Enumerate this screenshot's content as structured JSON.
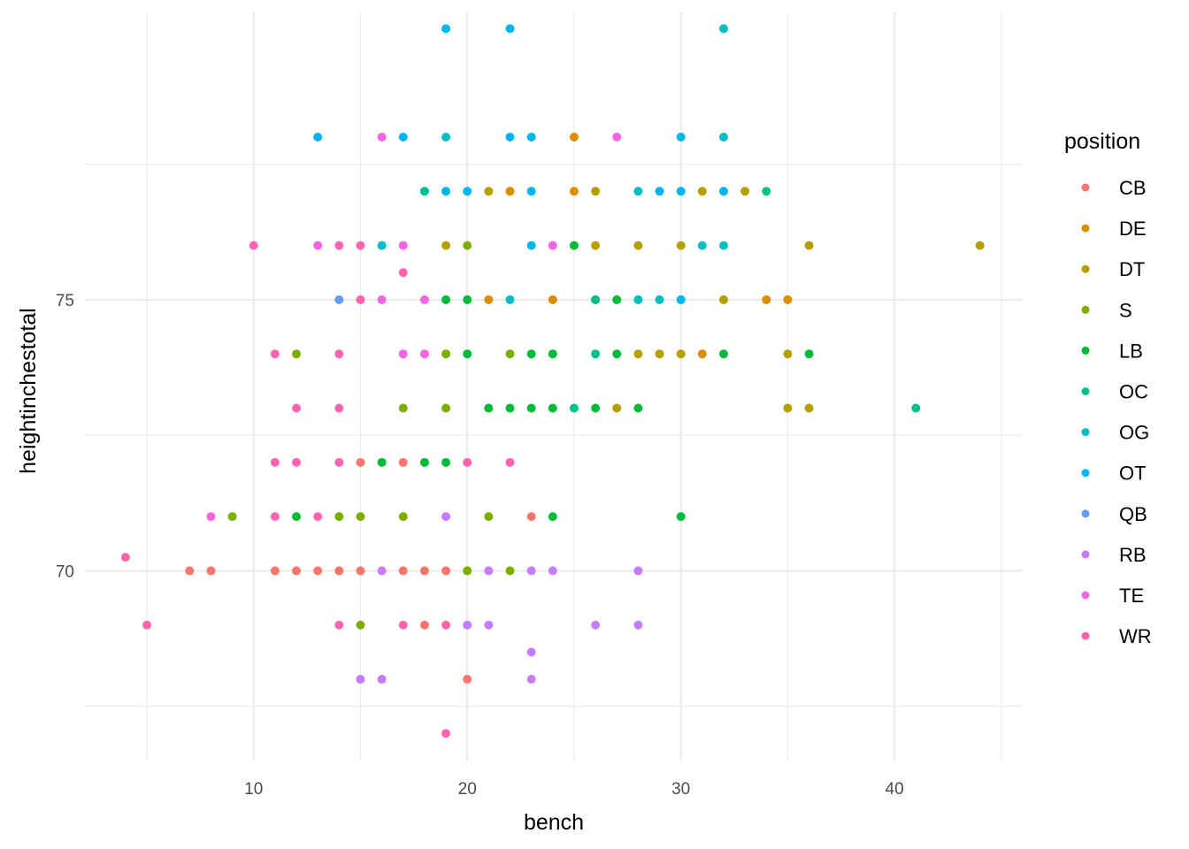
{
  "chart_data": {
    "type": "scatter",
    "title": "",
    "xlabel": "bench",
    "ylabel": "heightinchestotal",
    "xlim": [
      2.1,
      46.0
    ],
    "ylim": [
      66.5,
      80.3
    ],
    "x_ticks": [
      10,
      20,
      30,
      40
    ],
    "y_ticks": [
      70,
      75
    ],
    "grid": true,
    "legend": {
      "title": "position",
      "placement": "right",
      "entries": [
        {
          "label": "CB",
          "color": "#F8766D"
        },
        {
          "label": "DE",
          "color": "#DE8C00"
        },
        {
          "label": "DT",
          "color": "#B79F00"
        },
        {
          "label": "S",
          "color": "#7CAE00"
        },
        {
          "label": "LB",
          "color": "#00BA38"
        },
        {
          "label": "OC",
          "color": "#00C08B"
        },
        {
          "label": "OG",
          "color": "#00BFC4"
        },
        {
          "label": "OT",
          "color": "#00B4F0"
        },
        {
          "label": "QB",
          "color": "#619CFF"
        },
        {
          "label": "RB",
          "color": "#C77CFF"
        },
        {
          "label": "TE",
          "color": "#F564E3"
        },
        {
          "label": "WR",
          "color": "#FF64B0"
        }
      ]
    },
    "series": [
      {
        "name": "CB",
        "color": "#F8766D",
        "points": [
          [
            7,
            70
          ],
          [
            8,
            70
          ],
          [
            11,
            70
          ],
          [
            12,
            70
          ],
          [
            13,
            70
          ],
          [
            14,
            70
          ],
          [
            15,
            70
          ],
          [
            17,
            70
          ],
          [
            18,
            70
          ],
          [
            19,
            70
          ],
          [
            23,
            71
          ],
          [
            15,
            72
          ],
          [
            17,
            72
          ],
          [
            18,
            69
          ],
          [
            20,
            68
          ]
        ]
      },
      {
        "name": "DE",
        "color": "#DE8C00",
        "points": [
          [
            25,
            78
          ],
          [
            22,
            77
          ],
          [
            25,
            77
          ],
          [
            21,
            75
          ],
          [
            24,
            75
          ],
          [
            26,
            75
          ],
          [
            34,
            75
          ],
          [
            35,
            75
          ],
          [
            31,
            74
          ]
        ]
      },
      {
        "name": "DT",
        "color": "#B79F00",
        "points": [
          [
            21,
            77
          ],
          [
            26,
            77
          ],
          [
            31,
            77
          ],
          [
            33,
            77
          ],
          [
            19,
            76
          ],
          [
            26,
            76
          ],
          [
            28,
            76
          ],
          [
            30,
            76
          ],
          [
            36,
            76
          ],
          [
            44,
            76
          ],
          [
            32,
            75
          ],
          [
            28,
            74
          ],
          [
            29,
            74
          ],
          [
            30,
            74
          ],
          [
            35,
            74
          ],
          [
            27,
            73
          ],
          [
            35,
            73
          ],
          [
            36,
            73
          ]
        ]
      },
      {
        "name": "S",
        "color": "#7CAE00",
        "points": [
          [
            20,
            76
          ],
          [
            12,
            74
          ],
          [
            19,
            74
          ],
          [
            22,
            74
          ],
          [
            17,
            73
          ],
          [
            19,
            73
          ],
          [
            9,
            71
          ],
          [
            14,
            71
          ],
          [
            15,
            71
          ],
          [
            17,
            71
          ],
          [
            21,
            71
          ],
          [
            20,
            70
          ],
          [
            22,
            70
          ],
          [
            15,
            69
          ]
        ]
      },
      {
        "name": "LB",
        "color": "#00BA38",
        "points": [
          [
            25,
            76
          ],
          [
            19,
            75
          ],
          [
            20,
            75
          ],
          [
            27,
            75
          ],
          [
            20,
            74
          ],
          [
            23,
            74
          ],
          [
            24,
            74
          ],
          [
            27,
            74
          ],
          [
            32,
            74
          ],
          [
            36,
            74
          ],
          [
            21,
            73
          ],
          [
            22,
            73
          ],
          [
            23,
            73
          ],
          [
            24,
            73
          ],
          [
            26,
            73
          ],
          [
            28,
            73
          ],
          [
            16,
            72
          ],
          [
            18,
            72
          ],
          [
            19,
            72
          ],
          [
            12,
            71
          ],
          [
            24,
            71
          ],
          [
            30,
            71
          ]
        ]
      },
      {
        "name": "OC",
        "color": "#00C08B",
        "points": [
          [
            18,
            77
          ],
          [
            34,
            77
          ],
          [
            26,
            75
          ],
          [
            26,
            74
          ],
          [
            25,
            73
          ],
          [
            41,
            73
          ]
        ]
      },
      {
        "name": "OG",
        "color": "#00BFC4",
        "points": [
          [
            32,
            80
          ],
          [
            19,
            78
          ],
          [
            32,
            78
          ],
          [
            28,
            77
          ],
          [
            16,
            76
          ],
          [
            31,
            76
          ],
          [
            32,
            76
          ],
          [
            22,
            75
          ],
          [
            28,
            75
          ],
          [
            29,
            75
          ]
        ]
      },
      {
        "name": "OT",
        "color": "#00B4F0",
        "points": [
          [
            19,
            80
          ],
          [
            22,
            80
          ],
          [
            13,
            78
          ],
          [
            17,
            78
          ],
          [
            22,
            78
          ],
          [
            23,
            78
          ],
          [
            30,
            78
          ],
          [
            19,
            77
          ],
          [
            20,
            77
          ],
          [
            23,
            77
          ],
          [
            29,
            77
          ],
          [
            30,
            77
          ],
          [
            32,
            77
          ],
          [
            23,
            76
          ],
          [
            30,
            75
          ]
        ]
      },
      {
        "name": "QB",
        "color": "#619CFF",
        "points": [
          [
            14,
            75
          ]
        ]
      },
      {
        "name": "RB",
        "color": "#C77CFF",
        "points": [
          [
            16,
            70
          ],
          [
            21,
            70
          ],
          [
            23,
            70
          ],
          [
            24,
            70
          ],
          [
            28,
            70
          ],
          [
            19,
            71
          ],
          [
            20,
            69
          ],
          [
            21,
            69
          ],
          [
            26,
            69
          ],
          [
            28,
            69
          ],
          [
            23,
            68.5
          ],
          [
            15,
            68
          ],
          [
            16,
            68
          ],
          [
            23,
            68
          ]
        ]
      },
      {
        "name": "TE",
        "color": "#F564E3",
        "points": [
          [
            16,
            78
          ],
          [
            27,
            78
          ],
          [
            13,
            76
          ],
          [
            17,
            76
          ],
          [
            24,
            76
          ],
          [
            16,
            75
          ],
          [
            18,
            75
          ],
          [
            17,
            74
          ],
          [
            18,
            74
          ],
          [
            8,
            71
          ]
        ]
      },
      {
        "name": "WR",
        "color": "#FF64B0",
        "points": [
          [
            10,
            76
          ],
          [
            14,
            76
          ],
          [
            15,
            76
          ],
          [
            17,
            75.5
          ],
          [
            15,
            75
          ],
          [
            11,
            74
          ],
          [
            14,
            74
          ],
          [
            12,
            73
          ],
          [
            14,
            73
          ],
          [
            11,
            72
          ],
          [
            12,
            72
          ],
          [
            14,
            72
          ],
          [
            20,
            72
          ],
          [
            22,
            72
          ],
          [
            11,
            71
          ],
          [
            13,
            71
          ],
          [
            4,
            70.25
          ],
          [
            5,
            69
          ],
          [
            14,
            69
          ],
          [
            17,
            69
          ],
          [
            19,
            69
          ],
          [
            19,
            67
          ]
        ]
      }
    ]
  }
}
